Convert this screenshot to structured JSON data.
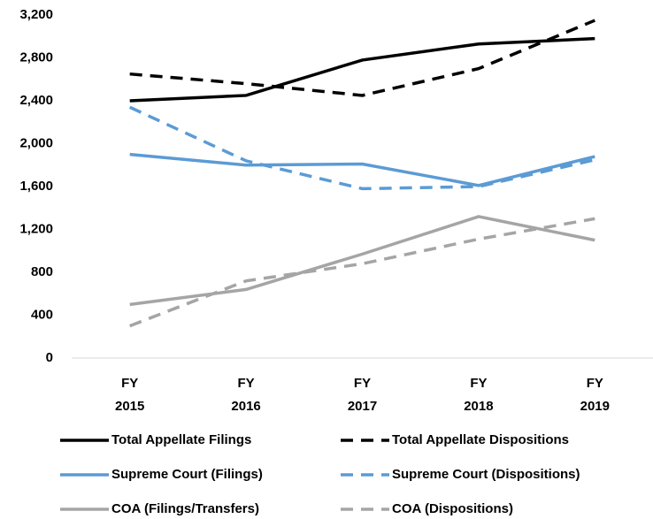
{
  "chart_data": {
    "type": "line",
    "categories": [
      "FY 2015",
      "FY 2016",
      "FY 2017",
      "FY 2018",
      "FY 2019"
    ],
    "series": [
      {
        "name": "Total Appellate Filings",
        "color": "#000000",
        "dashed": false,
        "values": [
          2400,
          2450,
          2780,
          2930,
          2980
        ]
      },
      {
        "name": "Total Appellate Dispositions",
        "color": "#000000",
        "dashed": true,
        "values": [
          2650,
          2560,
          2450,
          2700,
          3150
        ]
      },
      {
        "name": "Supreme Court (Filings)",
        "color": "#5b9bd5",
        "dashed": false,
        "values": [
          1900,
          1800,
          1810,
          1610,
          1880
        ]
      },
      {
        "name": "Supreme Court (Dispositions)",
        "color": "#5b9bd5",
        "dashed": true,
        "values": [
          2340,
          1840,
          1580,
          1600,
          1850
        ]
      },
      {
        "name": "COA (Filings/Transfers)",
        "color": "#a5a5a5",
        "dashed": false,
        "values": [
          500,
          640,
          970,
          1320,
          1100
        ]
      },
      {
        "name": "COA (Dispositions)",
        "color": "#a5a5a5",
        "dashed": true,
        "values": [
          300,
          720,
          880,
          1110,
          1300
        ]
      }
    ],
    "ylim": [
      0,
      3200
    ],
    "yticks": [
      0,
      {
        "value": 400,
        "label": "400"
      },
      {
        "value": 800,
        "label": "800"
      },
      {
        "value": 1200,
        "label": "1,200"
      },
      {
        "value": 1600,
        "label": "1,600"
      },
      {
        "value": 2000,
        "label": "2,000"
      },
      {
        "value": 2400,
        "label": "2,400"
      },
      {
        "value": 2800,
        "label": "2,800"
      },
      {
        "value": 3200,
        "label": "3,200"
      }
    ],
    "grid": false,
    "legend": "bottom"
  }
}
